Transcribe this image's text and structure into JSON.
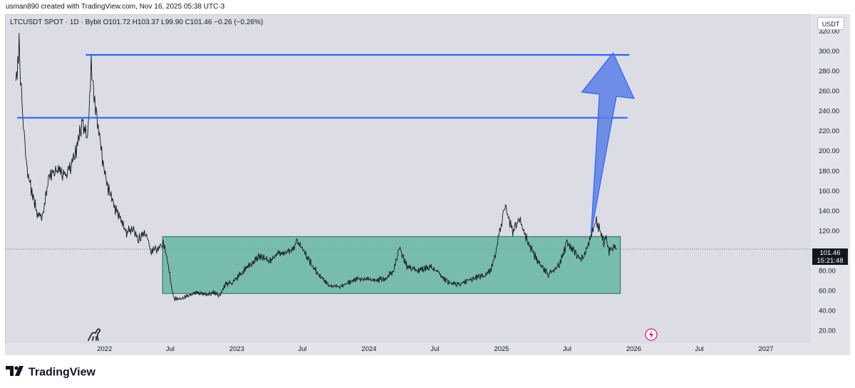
{
  "header": {
    "credit": "usman890 created with TradingView.com, Nov 16, 2025 05:38 UTC-3"
  },
  "symbol": {
    "info": "LTCUSDT SPOT · 1D · Bybit O101.72 H103.37 L99.90 C101.46 −0.26 (−0.26%)"
  },
  "currency_button": "USDT",
  "last_price": {
    "value": "101.46",
    "countdown": "15:21:48"
  },
  "brand": {
    "name": "TradingView"
  },
  "icons": [
    "dino-icon",
    "lightning-icon",
    "tradingview-logo-icon"
  ],
  "colors": {
    "background": "#dcdde4",
    "box_fill": "#5fb4a0",
    "line_blue": "#2962ff",
    "arrow_fill": "#5b7fe6"
  },
  "chart_data": {
    "type": "line",
    "title": "",
    "y_ticks": [
      "320.00",
      "300.00",
      "280.00",
      "260.00",
      "240.00",
      "220.00",
      "200.00",
      "180.00",
      "160.00",
      "140.00",
      "120.00",
      "100.00",
      "80.00",
      "60.00",
      "40.00",
      "20.00"
    ],
    "x_ticks": [
      "2022",
      "Jul",
      "2023",
      "Jul",
      "2024",
      "Jul",
      "2025",
      "Jul",
      "2026",
      "Jul",
      "2027"
    ],
    "ylim": [
      8,
      336
    ],
    "xlim": [
      "2021-04-03",
      "2027-05-03"
    ],
    "grid": false,
    "series": [
      {
        "x": [
          "2021-05-01",
          "2021-05-10",
          "2021-05-20",
          "2021-06-01",
          "2021-06-20",
          "2021-07-01",
          "2021-07-15",
          "2021-08-01",
          "2021-08-15",
          "2021-09-01",
          "2021-09-15",
          "2021-10-01",
          "2021-10-15",
          "2021-11-01",
          "2021-11-08",
          "2021-11-15",
          "2021-11-25",
          "2021-12-05",
          "2021-12-20",
          "2022-01-05",
          "2022-01-25",
          "2022-02-10",
          "2022-03-01",
          "2022-03-20",
          "2022-04-05",
          "2022-04-25",
          "2022-05-10",
          "2022-05-25",
          "2022-06-10",
          "2022-06-20",
          "2022-07-10",
          "2022-08-05",
          "2022-08-25",
          "2022-09-15",
          "2022-10-10",
          "2022-11-01",
          "2022-11-15",
          "2022-12-01",
          "2022-12-20",
          "2023-01-10",
          "2023-02-01",
          "2023-03-01",
          "2023-04-01",
          "2023-05-01",
          "2023-06-01",
          "2023-06-15",
          "2023-07-01",
          "2023-07-20",
          "2023-08-15",
          "2023-09-15",
          "2023-10-15",
          "2023-11-15",
          "2023-12-15",
          "2024-01-15",
          "2024-02-15",
          "2024-03-10",
          "2024-03-25",
          "2024-04-15",
          "2024-05-15",
          "2024-06-15",
          "2024-07-10",
          "2024-08-05",
          "2024-09-01",
          "2024-10-01",
          "2024-11-01",
          "2024-11-15",
          "2024-12-01",
          "2024-12-15",
          "2025-01-10",
          "2025-02-01",
          "2025-02-20",
          "2025-03-15",
          "2025-04-10",
          "2025-05-10",
          "2025-06-10",
          "2025-07-01",
          "2025-07-20",
          "2025-08-01",
          "2025-08-15",
          "2025-09-05",
          "2025-09-20",
          "2025-10-05",
          "2025-10-10",
          "2025-10-15",
          "2025-10-25",
          "2025-11-05",
          "2025-11-16"
        ],
        "y": [
          270,
          305,
          235,
          180,
          150,
          135,
          135,
          175,
          180,
          180,
          175,
          185,
          200,
          230,
          220,
          210,
          285,
          250,
          205,
          170,
          145,
          135,
          118,
          122,
          112,
          118,
          98,
          102,
          108,
          98,
          52,
          52,
          56,
          58,
          56,
          58,
          54,
          66,
          68,
          76,
          84,
          94,
          90,
          98,
          100,
          108,
          102,
          90,
          76,
          64,
          64,
          70,
          72,
          70,
          72,
          80,
          104,
          84,
          80,
          84,
          78,
          68,
          66,
          70,
          74,
          74,
          80,
          96,
          145,
          118,
          132,
          108,
          90,
          76,
          86,
          108,
          100,
          93,
          92,
          116,
          130,
          115,
          108,
          115,
          99,
          104,
          101.46
        ]
      }
    ],
    "annotations": {
      "range_box": {
        "x0": "2022-06-10",
        "x1": "2025-11-25",
        "y0": 57,
        "y1": 114
      },
      "resistance_lines": [
        {
          "y": 296,
          "x0": "2021-11-10",
          "x1": "2025-12-20"
        },
        {
          "y": 233,
          "x0": "2021-05-05",
          "x1": "2025-12-15"
        }
      ],
      "arrow": {
        "from": {
          "x": "2025-09-05",
          "y": 117
        },
        "to": {
          "x": "2025-11-05",
          "y": 298
        }
      }
    }
  }
}
